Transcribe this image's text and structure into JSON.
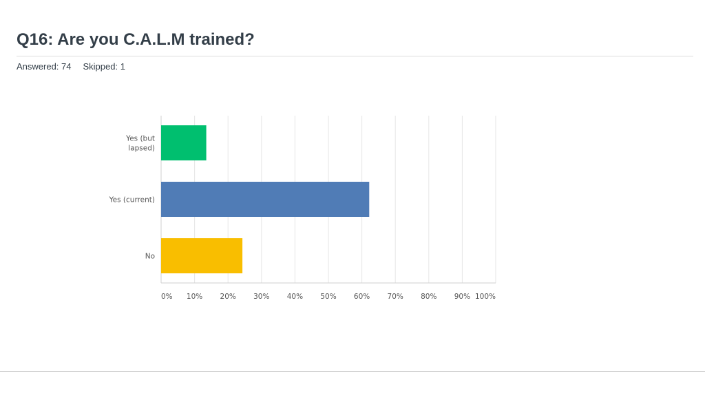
{
  "header": {
    "title": "Q16: Are you C.A.L.M trained?",
    "answered_label": "Answered: 74",
    "skipped_label": "Skipped: 1"
  },
  "chart_data": {
    "type": "bar",
    "orientation": "horizontal",
    "categories": [
      {
        "lines": [
          "Yes (but",
          "lapsed)"
        ],
        "value": 13.5,
        "color": "#00bf6f"
      },
      {
        "lines": [
          "Yes (current)"
        ],
        "value": 62.2,
        "color": "#507cb6"
      },
      {
        "lines": [
          "No"
        ],
        "value": 24.3,
        "color": "#f9be00"
      }
    ],
    "xlim": [
      0,
      100
    ],
    "xticks": [
      0,
      10,
      20,
      30,
      40,
      50,
      60,
      70,
      80,
      90,
      100
    ],
    "tick_suffix": "%",
    "grid": true
  }
}
